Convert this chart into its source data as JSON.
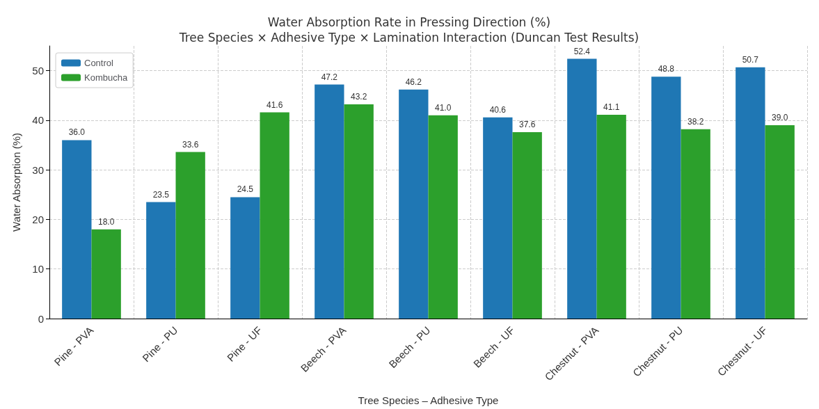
{
  "chart_data": {
    "type": "bar",
    "title": "Water Absorption Rate in Pressing Direction (%)\nTree Species × Adhesive Type × Lamination Interaction (Duncan Test Results)",
    "xlabel": "Tree Species – Adhesive Type",
    "ylabel": "Water Absorption (%)",
    "categories": [
      "Pine - PVA",
      "Pine - PU",
      "Pine - UF",
      "Beech - PVA",
      "Beech - PU",
      "Beech - UF",
      "Chestnut - PVA",
      "Chestnut - PU",
      "Chestnut - UF"
    ],
    "series": [
      {
        "name": "Control",
        "color": "#1f77b4",
        "values": [
          36,
          23.5,
          24.5,
          47.2,
          46.2,
          40.6,
          52.4,
          48.8,
          50.7
        ],
        "value_labels": [
          "36.0",
          "23.5",
          "24.5",
          "47.2",
          "46.2",
          "40.6",
          "52.4",
          "48.8",
          "50.7"
        ]
      },
      {
        "name": "Kombucha",
        "color": "#2ca02c",
        "values": [
          18,
          33.6,
          41.6,
          43.2,
          41,
          37.6,
          41.1,
          38.2,
          39
        ],
        "value_labels": [
          "18.0",
          "33.6",
          "41.6",
          "43.2",
          "41.0",
          "37.6",
          "41.1",
          "38.2",
          "39.0"
        ]
      }
    ],
    "ylim": [
      0,
      55
    ],
    "yticks": [
      0,
      10,
      20,
      30,
      40,
      50
    ],
    "grid": true,
    "legend": "top left"
  }
}
